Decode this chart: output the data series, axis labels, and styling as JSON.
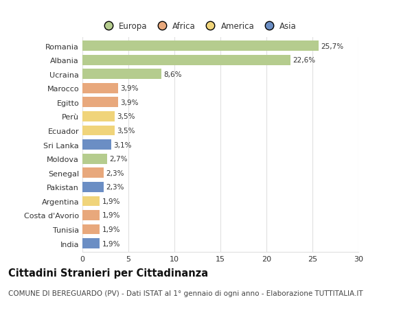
{
  "categories": [
    "Romania",
    "Albania",
    "Ucraina",
    "Marocco",
    "Egitto",
    "Perù",
    "Ecuador",
    "Sri Lanka",
    "Moldova",
    "Senegal",
    "Pakistan",
    "Argentina",
    "Costa d'Avorio",
    "Tunisia",
    "India"
  ],
  "values": [
    25.7,
    22.6,
    8.6,
    3.9,
    3.9,
    3.5,
    3.5,
    3.1,
    2.7,
    2.3,
    2.3,
    1.9,
    1.9,
    1.9,
    1.9
  ],
  "labels": [
    "25,7%",
    "22,6%",
    "8,6%",
    "3,9%",
    "3,9%",
    "3,5%",
    "3,5%",
    "3,1%",
    "2,7%",
    "2,3%",
    "2,3%",
    "1,9%",
    "1,9%",
    "1,9%",
    "1,9%"
  ],
  "colors": [
    "#b5cc8e",
    "#b5cc8e",
    "#b5cc8e",
    "#e8a87c",
    "#e8a87c",
    "#f0d47a",
    "#f0d47a",
    "#6b8ec4",
    "#b5cc8e",
    "#e8a87c",
    "#6b8ec4",
    "#f0d47a",
    "#e8a87c",
    "#e8a87c",
    "#6b8ec4"
  ],
  "legend_labels": [
    "Europa",
    "Africa",
    "America",
    "Asia"
  ],
  "legend_colors": [
    "#b5cc8e",
    "#e8a87c",
    "#f0d47a",
    "#6b8ec4"
  ],
  "title": "Cittadini Stranieri per Cittadinanza",
  "subtitle": "COMUNE DI BEREGUARDO (PV) - Dati ISTAT al 1° gennaio di ogni anno - Elaborazione TUTTITALIA.IT",
  "xlim": [
    0,
    30
  ],
  "xticks": [
    0,
    5,
    10,
    15,
    20,
    25,
    30
  ],
  "background_color": "#ffffff",
  "grid_color": "#e0e0e0",
  "bar_height": 0.72,
  "title_fontsize": 10.5,
  "subtitle_fontsize": 7.5,
  "label_fontsize": 7.5,
  "tick_fontsize": 8,
  "legend_fontsize": 8.5
}
